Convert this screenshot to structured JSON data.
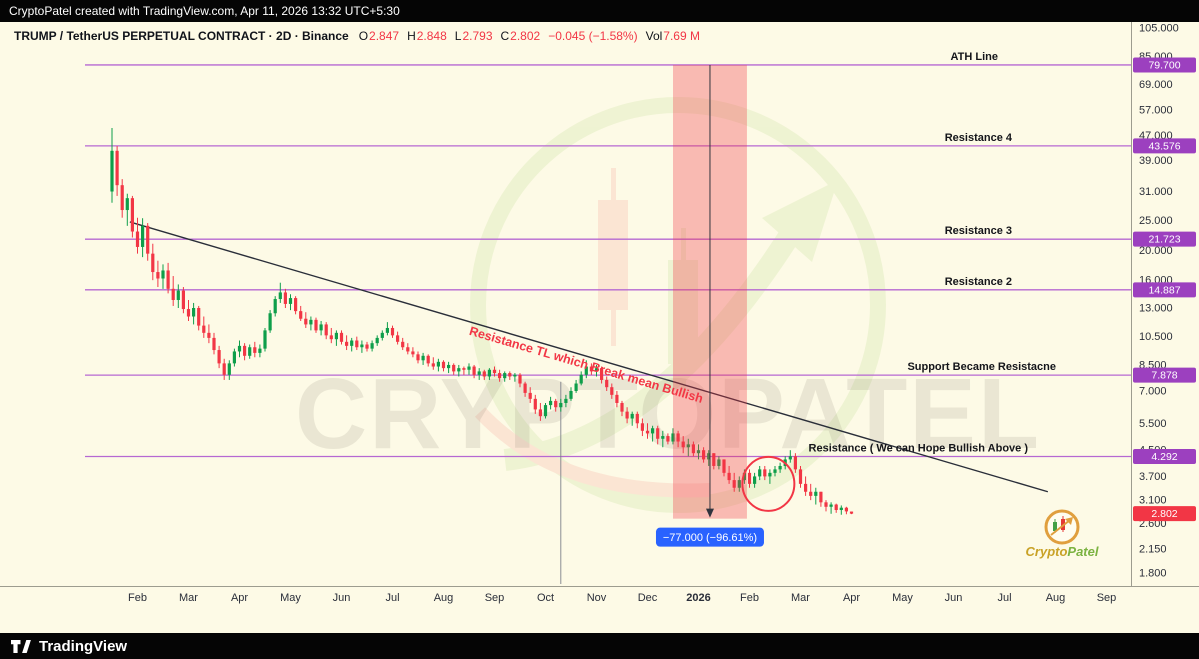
{
  "topbar": {
    "text": "CryptoPatel created with TradingView.com, Apr 11, 2026 13:32 UTC+5:30"
  },
  "legend": {
    "title": "TRUMP / TetherUS PERPETUAL CONTRACT · 2D · Binance",
    "o_label": "O",
    "o": "2.847",
    "h_label": "H",
    "h": "2.848",
    "l_label": "L",
    "l": "2.793",
    "c_label": "C",
    "c": "2.802",
    "change": "−0.045 (−1.58%)",
    "vol_label": "Vol",
    "vol": "7.69 M"
  },
  "watermark": {
    "text": "CRYPTOPATEL"
  },
  "brand_badge": {
    "name_a": "Crypto",
    "name_b": "Patel"
  },
  "bottombar": {
    "brand": "TradingView"
  },
  "chart_data": {
    "type": "candlestick",
    "symbol": "TRUMP / TetherUS PERPETUAL CONTRACT",
    "interval": "2D",
    "exchange": "Binance",
    "price_scale": "logarithmic",
    "y_ticks": [
      "105.000",
      "85.000",
      "69.000",
      "57.000",
      "47.000",
      "39.000",
      "31.000",
      "25.000",
      "20.000",
      "16.000",
      "13.000",
      "10.500",
      "8.500",
      "7.000",
      "5.500",
      "4.500",
      "3.700",
      "3.100",
      "2.600",
      "2.150",
      "1.800"
    ],
    "x_labels": [
      "Feb",
      "Mar",
      "Apr",
      "May",
      "Jun",
      "Jul",
      "Aug",
      "Sep",
      "Oct",
      "Nov",
      "Dec",
      "2026",
      "Feb",
      "Mar",
      "Apr",
      "May",
      "Jun",
      "Jul",
      "Aug",
      "Sep"
    ],
    "horizontal_lines": [
      {
        "label": "ATH Line",
        "price": 79.7,
        "badge": "79.700",
        "label_anchor_x": 998
      },
      {
        "label": "Resistance 4",
        "price": 43.576,
        "badge": "43.576",
        "label_anchor_x": 1012
      },
      {
        "label": "Resistance 3",
        "price": 21.723,
        "badge": "21.723",
        "label_anchor_x": 1012
      },
      {
        "label": "Resistance 2",
        "price": 14.887,
        "badge": "14.887",
        "label_anchor_x": 1012
      },
      {
        "label": "Support Became Resistacne",
        "price": 7.878,
        "badge": "7.878",
        "label_anchor_x": 1056
      },
      {
        "label": "Resistance ( We can Hope Bullish Above )",
        "price": 4.292,
        "badge": "4.292",
        "label_anchor_x": 1028
      }
    ],
    "trendline": {
      "label": "Resistance TL which Break mean Bullish",
      "from": {
        "index": 3.5,
        "price": 24.7
      },
      "to": {
        "index": 183.5,
        "price": 3.3
      }
    },
    "measurement": {
      "label": "−77.000 (−96.61%)",
      "from_index": 110,
      "to_index": 124.5,
      "from_price": 79.7,
      "to_price": 2.7
    },
    "event_vline": {
      "index": 88,
      "from_price": 7.5
    },
    "highlight_circle": {
      "index": 128.7,
      "price": 3.5
    },
    "last_price": {
      "value": 2.802,
      "badge": "2.802",
      "direction": "down"
    },
    "colors": {
      "up": "#0E9E4A",
      "down": "#F23645",
      "line": "#B668D2",
      "badge": "#9C40BF",
      "measure_fill": "rgba(242,54,69,0.32)",
      "measure_label_bg": "#2962FF",
      "trendline": "#2A2E39",
      "background": "#FDFAE6"
    },
    "candles": [
      [
        31.0,
        49.8,
        28.5,
        42.0
      ],
      [
        42.0,
        43.5,
        30.0,
        32.5
      ],
      [
        32.5,
        34.0,
        25.5,
        27.0
      ],
      [
        27.0,
        30.5,
        24.0,
        29.5
      ],
      [
        29.5,
        30.0,
        22.0,
        23.0
      ],
      [
        23.0,
        25.5,
        19.5,
        20.5
      ],
      [
        20.5,
        25.4,
        19.0,
        24.0
      ],
      [
        24.0,
        24.5,
        18.5,
        19.5
      ],
      [
        19.5,
        21.0,
        16.0,
        17.0
      ],
      [
        17.0,
        18.5,
        15.2,
        16.2
      ],
      [
        16.2,
        18.0,
        15.0,
        17.2
      ],
      [
        17.2,
        18.2,
        14.5,
        15.0
      ],
      [
        15.0,
        16.5,
        13.2,
        13.8
      ],
      [
        13.8,
        15.5,
        13.0,
        14.8
      ],
      [
        14.8,
        15.2,
        12.5,
        12.9
      ],
      [
        12.9,
        13.8,
        11.8,
        12.2
      ],
      [
        12.2,
        13.5,
        11.5,
        13.0
      ],
      [
        13.0,
        13.2,
        11.0,
        11.4
      ],
      [
        11.4,
        12.2,
        10.4,
        10.8
      ],
      [
        10.8,
        11.5,
        10.0,
        10.4
      ],
      [
        10.4,
        10.8,
        9.2,
        9.5
      ],
      [
        9.5,
        9.8,
        8.3,
        8.6
      ],
      [
        8.6,
        8.9,
        7.6,
        7.9
      ],
      [
        7.9,
        8.8,
        7.6,
        8.6
      ],
      [
        8.6,
        9.6,
        8.4,
        9.4
      ],
      [
        9.4,
        10.2,
        9.0,
        9.8
      ],
      [
        9.8,
        10.0,
        8.8,
        9.1
      ],
      [
        9.1,
        9.9,
        8.9,
        9.7
      ],
      [
        9.7,
        10.1,
        9.0,
        9.3
      ],
      [
        9.3,
        9.9,
        9.0,
        9.6
      ],
      [
        9.6,
        11.2,
        9.4,
        11.0
      ],
      [
        11.0,
        12.8,
        10.8,
        12.5
      ],
      [
        12.5,
        14.2,
        12.2,
        13.9
      ],
      [
        13.9,
        15.7,
        13.5,
        14.6
      ],
      [
        14.6,
        15.0,
        13.0,
        13.4
      ],
      [
        13.4,
        14.4,
        12.8,
        14.0
      ],
      [
        14.0,
        14.2,
        12.4,
        12.7
      ],
      [
        12.7,
        13.2,
        11.8,
        12.0
      ],
      [
        12.0,
        12.6,
        11.2,
        11.5
      ],
      [
        11.5,
        12.2,
        11.0,
        11.9
      ],
      [
        11.9,
        12.1,
        10.8,
        11.0
      ],
      [
        11.0,
        11.8,
        10.6,
        11.5
      ],
      [
        11.5,
        11.7,
        10.3,
        10.6
      ],
      [
        10.6,
        11.2,
        10.0,
        10.3
      ],
      [
        10.3,
        11.0,
        9.8,
        10.8
      ],
      [
        10.8,
        11.0,
        9.9,
        10.1
      ],
      [
        10.1,
        10.6,
        9.5,
        9.8
      ],
      [
        9.8,
        10.4,
        9.4,
        10.2
      ],
      [
        10.2,
        10.5,
        9.5,
        9.7
      ],
      [
        9.7,
        10.2,
        9.3,
        9.9
      ],
      [
        9.9,
        10.1,
        9.4,
        9.6
      ],
      [
        9.6,
        10.2,
        9.4,
        10.0
      ],
      [
        10.0,
        10.6,
        9.8,
        10.4
      ],
      [
        10.4,
        11.0,
        10.2,
        10.8
      ],
      [
        10.8,
        11.7,
        10.6,
        11.2
      ],
      [
        11.2,
        11.4,
        10.4,
        10.6
      ],
      [
        10.6,
        10.9,
        9.9,
        10.1
      ],
      [
        10.1,
        10.4,
        9.5,
        9.7
      ],
      [
        9.7,
        10.0,
        9.2,
        9.4
      ],
      [
        9.4,
        9.7,
        9.0,
        9.2
      ],
      [
        9.2,
        9.4,
        8.6,
        8.8
      ],
      [
        8.8,
        9.3,
        8.5,
        9.1
      ],
      [
        9.1,
        9.2,
        8.4,
        8.6
      ],
      [
        8.6,
        9.0,
        8.2,
        8.4
      ],
      [
        8.4,
        8.9,
        8.1,
        8.7
      ],
      [
        8.7,
        8.8,
        8.1,
        8.3
      ],
      [
        8.3,
        8.7,
        8.0,
        8.5
      ],
      [
        8.5,
        8.6,
        7.9,
        8.1
      ],
      [
        8.1,
        8.5,
        7.8,
        8.3
      ],
      [
        8.3,
        8.4,
        7.9,
        8.2
      ],
      [
        8.2,
        8.6,
        7.9,
        8.4
      ],
      [
        8.4,
        8.5,
        7.7,
        7.9
      ],
      [
        7.9,
        8.3,
        7.6,
        8.1
      ],
      [
        8.1,
        8.2,
        7.6,
        7.8
      ],
      [
        7.8,
        8.3,
        7.6,
        8.2
      ],
      [
        8.2,
        8.4,
        7.8,
        8.0
      ],
      [
        8.0,
        8.2,
        7.5,
        7.7
      ],
      [
        7.7,
        8.1,
        7.5,
        8.0
      ],
      [
        8.0,
        8.1,
        7.6,
        7.8
      ],
      [
        7.8,
        8.0,
        7.5,
        7.9
      ],
      [
        7.9,
        8.0,
        7.2,
        7.4
      ],
      [
        7.4,
        7.5,
        6.7,
        6.9
      ],
      [
        6.9,
        7.2,
        6.4,
        6.6
      ],
      [
        6.6,
        6.8,
        5.9,
        6.1
      ],
      [
        6.1,
        6.4,
        5.6,
        5.8
      ],
      [
        5.8,
        6.4,
        5.7,
        6.3
      ],
      [
        6.3,
        6.7,
        6.1,
        6.5
      ],
      [
        6.5,
        6.6,
        6.0,
        6.2
      ],
      [
        6.2,
        6.6,
        6.0,
        6.4
      ],
      [
        6.4,
        6.8,
        6.2,
        6.6
      ],
      [
        6.6,
        7.2,
        6.5,
        7.0
      ],
      [
        7.0,
        7.6,
        6.9,
        7.4
      ],
      [
        7.4,
        8.1,
        7.3,
        7.9
      ],
      [
        7.9,
        8.8,
        7.7,
        8.4
      ],
      [
        8.4,
        8.6,
        7.9,
        8.1
      ],
      [
        8.1,
        8.5,
        7.8,
        8.3
      ],
      [
        8.3,
        8.4,
        7.4,
        7.6
      ],
      [
        7.6,
        7.8,
        7.0,
        7.2
      ],
      [
        7.2,
        7.4,
        6.6,
        6.8
      ],
      [
        6.8,
        7.0,
        6.2,
        6.4
      ],
      [
        6.4,
        6.5,
        5.8,
        6.0
      ],
      [
        6.0,
        6.2,
        5.5,
        5.7
      ],
      [
        5.7,
        6.0,
        5.4,
        5.9
      ],
      [
        5.9,
        6.0,
        5.3,
        5.5
      ],
      [
        5.5,
        5.7,
        5.0,
        5.2
      ],
      [
        5.2,
        5.5,
        4.9,
        5.1
      ],
      [
        5.1,
        5.4,
        4.8,
        5.3
      ],
      [
        5.3,
        5.4,
        4.7,
        4.9
      ],
      [
        4.9,
        5.2,
        4.6,
        5.0
      ],
      [
        5.0,
        5.1,
        4.7,
        4.8
      ],
      [
        4.8,
        5.3,
        4.7,
        5.1
      ],
      [
        5.1,
        5.2,
        4.6,
        4.8
      ],
      [
        4.8,
        5.0,
        4.4,
        4.6
      ],
      [
        4.6,
        4.9,
        4.3,
        4.7
      ],
      [
        4.7,
        4.8,
        4.3,
        4.4
      ],
      [
        4.4,
        4.7,
        4.2,
        4.5
      ],
      [
        4.5,
        4.6,
        4.1,
        4.2
      ],
      [
        4.2,
        4.5,
        4.0,
        4.4
      ],
      [
        4.4,
        4.4,
        3.9,
        4.0
      ],
      [
        4.0,
        4.3,
        3.9,
        4.2
      ],
      [
        4.2,
        4.2,
        3.7,
        3.8
      ],
      [
        3.8,
        4.0,
        3.5,
        3.6
      ],
      [
        3.6,
        3.8,
        3.3,
        3.4
      ],
      [
        3.4,
        3.7,
        3.3,
        3.6
      ],
      [
        3.6,
        3.9,
        3.5,
        3.8
      ],
      [
        3.8,
        3.9,
        3.4,
        3.5
      ],
      [
        3.5,
        3.8,
        3.4,
        3.7
      ],
      [
        3.7,
        4.0,
        3.6,
        3.9
      ],
      [
        3.9,
        4.0,
        3.6,
        3.7
      ],
      [
        3.7,
        3.9,
        3.5,
        3.8
      ],
      [
        3.8,
        4.0,
        3.7,
        3.9
      ],
      [
        3.9,
        4.1,
        3.8,
        4.0
      ],
      [
        4.0,
        4.3,
        3.9,
        4.2
      ],
      [
        4.2,
        4.5,
        4.1,
        4.3
      ],
      [
        4.3,
        4.4,
        3.8,
        3.9
      ],
      [
        3.9,
        4.0,
        3.4,
        3.5
      ],
      [
        3.5,
        3.7,
        3.2,
        3.3
      ],
      [
        3.3,
        3.5,
        3.1,
        3.2
      ],
      [
        3.2,
        3.4,
        3.0,
        3.3
      ],
      [
        3.3,
        3.3,
        2.95,
        3.05
      ],
      [
        3.05,
        3.1,
        2.85,
        2.95
      ],
      [
        2.95,
        3.05,
        2.8,
        3.0
      ],
      [
        3.0,
        3.02,
        2.82,
        2.88
      ],
      [
        2.88,
        2.98,
        2.78,
        2.93
      ],
      [
        2.93,
        2.95,
        2.79,
        2.85
      ],
      [
        2.847,
        2.848,
        2.793,
        2.802
      ]
    ]
  }
}
